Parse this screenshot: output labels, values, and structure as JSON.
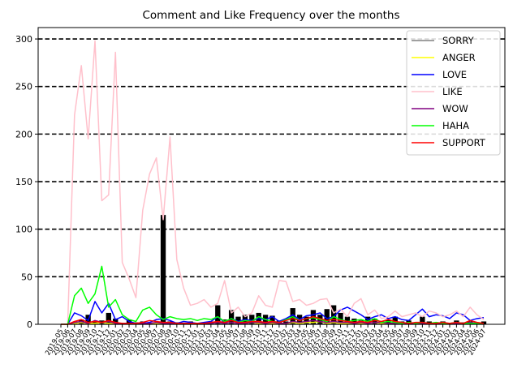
{
  "chart_data": {
    "type": "line",
    "title": "Comment and Like Frequency over the months",
    "xlabel": "",
    "ylabel": "",
    "ylim": [
      0,
      312
    ],
    "yticks": [
      0,
      50,
      100,
      150,
      200,
      250,
      300
    ],
    "grid": "horizontal dashed",
    "legend_position": "top-right",
    "x": [
      "2019-05",
      "2019-06",
      "2019-07",
      "2019-08",
      "2019-09",
      "2019-10",
      "2019-11",
      "2019-12",
      "2020-01",
      "2020-02",
      "2020-03",
      "2020-04",
      "2020-05",
      "2020-06",
      "2020-07",
      "2020-08",
      "2020-09",
      "2020-10",
      "2020-11",
      "2020-12",
      "2021-01",
      "2021-02",
      "2021-03",
      "2021-04",
      "2021-05",
      "2021-06",
      "2021-07",
      "2021-08",
      "2021-09",
      "2021-10",
      "2021-11",
      "2021-12",
      "2022-01",
      "2022-02",
      "2022-03",
      "2022-04",
      "2022-05",
      "2022-06",
      "2022-07",
      "2022-08",
      "2022-09",
      "2022-10",
      "2022-11",
      "2022-12",
      "2023-01",
      "2023-02",
      "2023-03",
      "2023-04",
      "2023-05",
      "2023-06",
      "2023-07",
      "2023-08",
      "2023-09",
      "2023-10",
      "2023-11",
      "2023-12",
      "2024-01",
      "2024-02",
      "2024-03",
      "2024-04",
      "2024-05",
      "2024-06",
      "2024-07"
    ],
    "bar_series": {
      "name": "",
      "color": "#000000",
      "values": [
        0,
        0,
        2,
        5,
        10,
        3,
        4,
        12,
        6,
        1,
        5,
        2,
        3,
        1,
        2,
        115,
        3,
        2,
        1,
        3,
        1,
        1,
        3,
        20,
        5,
        15,
        8,
        10,
        10,
        12,
        10,
        9,
        4,
        3,
        17,
        10,
        8,
        15,
        10,
        16,
        20,
        12,
        8,
        6,
        4,
        8,
        6,
        3,
        5,
        8,
        3,
        4,
        2,
        8,
        3,
        2,
        3,
        1,
        4,
        2,
        3,
        2,
        3
      ]
    },
    "series": [
      {
        "name": "SORRY",
        "color": "#808080",
        "values": [
          0,
          0,
          0,
          0,
          0,
          0,
          0,
          0,
          0,
          0,
          0,
          0,
          0,
          0,
          0,
          0,
          0,
          0,
          0,
          0,
          0,
          0,
          0,
          0,
          0,
          0,
          0,
          0,
          0,
          0,
          0,
          0,
          0,
          0,
          0,
          0,
          0,
          0,
          0,
          0,
          0,
          0,
          0,
          0,
          0,
          0,
          0,
          0,
          0,
          0,
          0,
          0,
          0,
          0,
          0,
          0,
          0,
          0,
          0,
          0,
          0,
          0,
          0
        ]
      },
      {
        "name": "ANGER",
        "color": "#ffff00",
        "values": [
          0,
          0,
          1,
          2,
          1,
          1,
          2,
          1,
          1,
          1,
          0,
          1,
          1,
          1,
          1,
          1,
          1,
          1,
          1,
          1,
          0,
          1,
          1,
          2,
          1,
          2,
          1,
          1,
          2,
          1,
          1,
          1,
          1,
          1,
          2,
          1,
          2,
          2,
          3,
          1,
          2,
          1,
          1,
          1,
          1,
          1,
          2,
          1,
          1,
          1,
          1,
          1,
          1,
          1,
          1,
          1,
          1,
          1,
          1,
          1,
          1,
          1,
          1
        ]
      },
      {
        "name": "LOVE",
        "color": "#0000ff",
        "values": [
          0,
          0,
          12,
          9,
          4,
          24,
          12,
          22,
          5,
          8,
          3,
          1,
          1,
          2,
          5,
          6,
          4,
          1,
          3,
          2,
          1,
          2,
          3,
          8,
          2,
          6,
          3,
          5,
          4,
          6,
          5,
          8,
          3,
          6,
          10,
          5,
          9,
          10,
          12,
          6,
          8,
          15,
          18,
          14,
          10,
          5,
          8,
          10,
          6,
          8,
          5,
          4,
          10,
          16,
          8,
          10,
          9,
          6,
          12,
          10,
          4,
          6,
          7
        ]
      },
      {
        "name": "LIKE",
        "color": "#ffc0cb",
        "values": [
          0,
          0,
          220,
          272,
          195,
          298,
          130,
          136,
          286,
          65,
          48,
          28,
          120,
          158,
          175,
          110,
          197,
          68,
          38,
          20,
          22,
          26,
          18,
          22,
          46,
          12,
          18,
          8,
          12,
          30,
          20,
          18,
          46,
          45,
          24,
          26,
          20,
          22,
          26,
          27,
          12,
          16,
          8,
          22,
          27,
          10,
          15,
          6,
          8,
          14,
          8,
          10,
          12,
          8,
          14,
          12,
          8,
          10,
          14,
          8,
          18,
          10,
          5
        ]
      },
      {
        "name": "WOW",
        "color": "#800080",
        "values": [
          0,
          0,
          2,
          3,
          1,
          4,
          2,
          3,
          1,
          1,
          1,
          1,
          1,
          1,
          2,
          1,
          1,
          1,
          1,
          1,
          1,
          1,
          1,
          2,
          1,
          2,
          1,
          1,
          2,
          2,
          1,
          2,
          1,
          1,
          3,
          2,
          3,
          4,
          3,
          2,
          3,
          2,
          2,
          1,
          2,
          1,
          2,
          2,
          1,
          1,
          1,
          1,
          1,
          1,
          1,
          1,
          1,
          1,
          1,
          1,
          2,
          1,
          1
        ]
      },
      {
        "name": "HAHA",
        "color": "#00ff00",
        "values": [
          0,
          0,
          30,
          38,
          22,
          32,
          61,
          18,
          26,
          10,
          5,
          3,
          15,
          18,
          10,
          5,
          8,
          6,
          5,
          6,
          4,
          6,
          5,
          8,
          3,
          6,
          2,
          4,
          3,
          8,
          5,
          3,
          2,
          5,
          8,
          4,
          6,
          7,
          5,
          3,
          8,
          5,
          3,
          4,
          5,
          3,
          6,
          2,
          3,
          2,
          1,
          2,
          1,
          2,
          1,
          2,
          1,
          1,
          2,
          1,
          1,
          1,
          1
        ]
      },
      {
        "name": "SUPPORT",
        "color": "#ff0000",
        "values": [
          0,
          0,
          3,
          5,
          2,
          3,
          2,
          4,
          2,
          1,
          1,
          1,
          2,
          4,
          3,
          2,
          2,
          1,
          1,
          1,
          1,
          1,
          2,
          3,
          2,
          4,
          2,
          2,
          3,
          3,
          2,
          3,
          2,
          4,
          6,
          4,
          6,
          8,
          6,
          4,
          5,
          4,
          3,
          2,
          3,
          2,
          4,
          3,
          5,
          3,
          2,
          1,
          2,
          2,
          1,
          1,
          2,
          1,
          2,
          1,
          4,
          2,
          1
        ]
      }
    ]
  }
}
